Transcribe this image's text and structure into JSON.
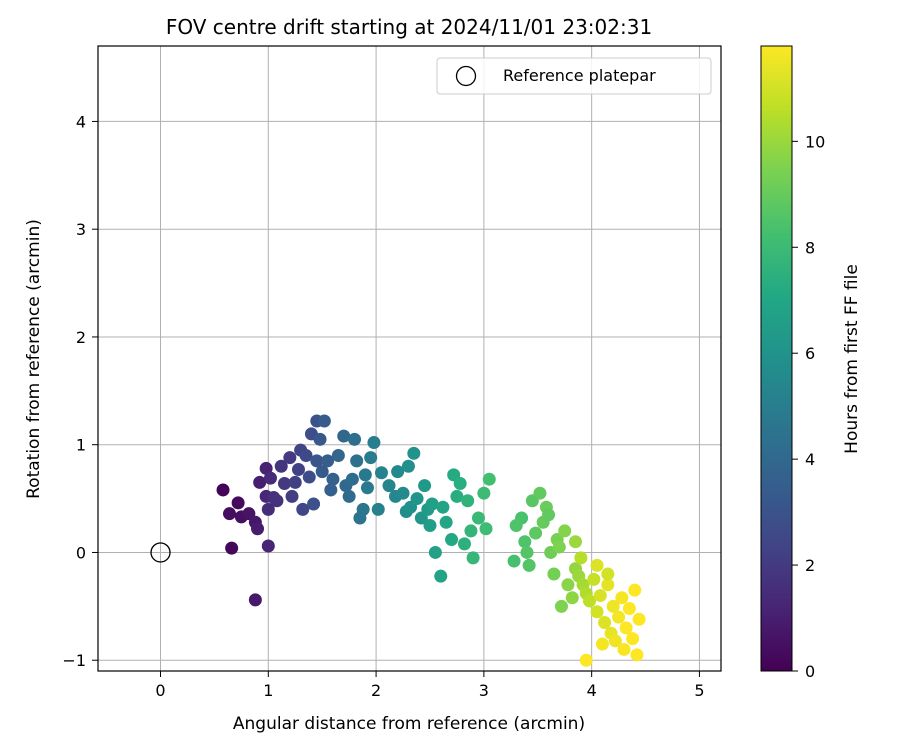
{
  "chart_data": {
    "type": "scatter",
    "title": "FOV centre drift starting at 2024/11/01 23:02:31",
    "xlabel": "Angular distance from reference (arcmin)",
    "ylabel": "Rotation from reference (arcmin)",
    "xlim": [
      -0.58,
      5.2
    ],
    "ylim": [
      -1.1,
      4.7
    ],
    "xticks": [
      0,
      1,
      2,
      3,
      4,
      5
    ],
    "yticks": [
      -1,
      0,
      1,
      2,
      3,
      4
    ],
    "grid": true,
    "legend": {
      "placement": "top-right",
      "entries": [
        "Reference platepar"
      ]
    },
    "reference": {
      "x": 0,
      "y": 0,
      "label": "Reference platepar"
    },
    "colorbar": {
      "label": "Hours from first FF file",
      "range": [
        0,
        11.8
      ],
      "ticks": [
        0,
        2,
        4,
        6,
        8,
        10
      ],
      "colormap": "viridis"
    },
    "points": [
      [
        0.58,
        0.58,
        0.1
      ],
      [
        0.66,
        0.04,
        0.2
      ],
      [
        0.72,
        0.46,
        0.3
      ],
      [
        0.64,
        0.36,
        0.4
      ],
      [
        0.75,
        0.33,
        0.5
      ],
      [
        0.82,
        0.36,
        0.6
      ],
      [
        0.88,
        0.28,
        0.7
      ],
      [
        0.88,
        -0.44,
        0.8
      ],
      [
        0.9,
        0.22,
        0.9
      ],
      [
        0.92,
        0.65,
        1.0
      ],
      [
        0.98,
        0.78,
        1.1
      ],
      [
        1.0,
        0.06,
        1.2
      ],
      [
        0.98,
        0.52,
        1.3
      ],
      [
        1.02,
        0.69,
        1.4
      ],
      [
        1.0,
        0.4,
        1.5
      ],
      [
        1.05,
        0.51,
        1.6
      ],
      [
        1.08,
        0.48,
        1.7
      ],
      [
        1.12,
        0.8,
        1.8
      ],
      [
        1.15,
        0.64,
        1.9
      ],
      [
        1.2,
        0.88,
        2.0
      ],
      [
        1.22,
        0.52,
        2.1
      ],
      [
        1.25,
        0.65,
        2.2
      ],
      [
        1.28,
        0.77,
        2.3
      ],
      [
        1.3,
        0.95,
        2.4
      ],
      [
        1.32,
        0.4,
        2.5
      ],
      [
        1.35,
        0.9,
        2.6
      ],
      [
        1.38,
        0.7,
        2.7
      ],
      [
        1.4,
        1.1,
        2.8
      ],
      [
        1.42,
        0.45,
        2.9
      ],
      [
        1.45,
        1.22,
        3.0
      ],
      [
        1.45,
        0.85,
        3.1
      ],
      [
        1.48,
        1.05,
        3.2
      ],
      [
        1.5,
        0.75,
        3.3
      ],
      [
        1.52,
        1.22,
        3.4
      ],
      [
        1.55,
        0.85,
        3.5
      ],
      [
        1.58,
        0.58,
        3.6
      ],
      [
        1.6,
        0.68,
        3.7
      ],
      [
        1.65,
        0.9,
        3.8
      ],
      [
        1.7,
        1.08,
        3.9
      ],
      [
        1.72,
        0.62,
        4.0
      ],
      [
        1.75,
        0.52,
        4.1
      ],
      [
        1.78,
        0.68,
        4.2
      ],
      [
        1.8,
        1.05,
        4.3
      ],
      [
        1.82,
        0.85,
        4.4
      ],
      [
        1.85,
        0.32,
        4.5
      ],
      [
        1.88,
        0.4,
        4.6
      ],
      [
        1.9,
        0.72,
        4.7
      ],
      [
        1.92,
        0.6,
        4.8
      ],
      [
        1.95,
        0.88,
        4.9
      ],
      [
        1.98,
        1.02,
        5.0
      ],
      [
        2.02,
        0.4,
        5.1
      ],
      [
        2.05,
        0.74,
        5.2
      ],
      [
        2.12,
        0.62,
        5.3
      ],
      [
        2.18,
        0.52,
        5.4
      ],
      [
        2.2,
        0.75,
        5.5
      ],
      [
        2.25,
        0.55,
        5.6
      ],
      [
        2.28,
        0.38,
        5.7
      ],
      [
        2.3,
        0.8,
        5.8
      ],
      [
        2.32,
        0.42,
        5.9
      ],
      [
        2.35,
        0.92,
        6.0
      ],
      [
        2.38,
        0.5,
        6.1
      ],
      [
        2.42,
        0.32,
        6.2
      ],
      [
        2.45,
        0.62,
        6.3
      ],
      [
        2.48,
        0.4,
        6.4
      ],
      [
        2.5,
        0.25,
        6.5
      ],
      [
        2.52,
        0.45,
        6.6
      ],
      [
        2.55,
        0.0,
        6.7
      ],
      [
        2.6,
        -0.22,
        6.8
      ],
      [
        2.62,
        0.42,
        6.9
      ],
      [
        2.65,
        0.28,
        7.0
      ],
      [
        2.7,
        0.12,
        7.1
      ],
      [
        2.72,
        0.72,
        7.2
      ],
      [
        2.75,
        0.52,
        7.3
      ],
      [
        2.78,
        0.64,
        7.4
      ],
      [
        2.82,
        0.08,
        7.5
      ],
      [
        2.85,
        0.48,
        7.6
      ],
      [
        2.88,
        0.2,
        7.7
      ],
      [
        2.9,
        -0.05,
        7.8
      ],
      [
        2.95,
        0.32,
        7.9
      ],
      [
        3.0,
        0.55,
        8.0
      ],
      [
        3.02,
        0.22,
        8.1
      ],
      [
        3.05,
        0.68,
        8.2
      ],
      [
        3.28,
        -0.08,
        8.3
      ],
      [
        3.35,
        0.32,
        8.4
      ],
      [
        3.38,
        0.1,
        8.5
      ],
      [
        3.42,
        -0.12,
        8.6
      ],
      [
        3.45,
        0.48,
        8.7
      ],
      [
        3.48,
        0.18,
        8.8
      ],
      [
        3.52,
        0.55,
        8.9
      ],
      [
        3.55,
        0.28,
        9.0
      ],
      [
        3.58,
        0.42,
        9.1
      ],
      [
        3.62,
        0.0,
        9.2
      ],
      [
        3.65,
        -0.2,
        9.3
      ],
      [
        3.68,
        0.12,
        9.4
      ],
      [
        3.72,
        -0.5,
        9.5
      ],
      [
        3.75,
        0.2,
        9.6
      ],
      [
        3.78,
        -0.3,
        9.7
      ],
      [
        3.82,
        -0.42,
        9.8
      ],
      [
        3.85,
        -0.15,
        9.9
      ],
      [
        3.88,
        -0.22,
        10.0
      ],
      [
        3.92,
        -0.3,
        10.2
      ],
      [
        3.95,
        -0.38,
        10.4
      ],
      [
        3.98,
        -0.45,
        10.6
      ],
      [
        4.02,
        -0.25,
        10.8
      ],
      [
        4.05,
        -0.55,
        11.0
      ],
      [
        4.08,
        -0.4,
        11.1
      ],
      [
        4.12,
        -0.65,
        11.2
      ],
      [
        4.15,
        -0.3,
        11.3
      ],
      [
        4.18,
        -0.75,
        11.4
      ],
      [
        4.2,
        -0.5,
        11.5
      ],
      [
        4.22,
        -0.82,
        11.55
      ],
      [
        4.25,
        -0.6,
        11.6
      ],
      [
        4.28,
        -0.42,
        11.65
      ],
      [
        4.3,
        -0.9,
        11.7
      ],
      [
        4.32,
        -0.7,
        11.75
      ],
      [
        4.35,
        -0.52,
        11.8
      ],
      [
        4.38,
        -0.8,
        11.8
      ],
      [
        4.4,
        -0.35,
        11.8
      ],
      [
        4.42,
        -0.95,
        11.8
      ],
      [
        4.44,
        -0.62,
        11.8
      ],
      [
        3.95,
        -1.0,
        11.8
      ],
      [
        4.1,
        -0.85,
        11.6
      ],
      [
        4.05,
        -0.12,
        11.2
      ],
      [
        4.15,
        -0.2,
        11.0
      ],
      [
        3.9,
        -0.05,
        10.5
      ],
      [
        3.85,
        0.1,
        10.0
      ],
      [
        3.7,
        0.05,
        9.5
      ],
      [
        3.6,
        0.35,
        8.9
      ],
      [
        3.3,
        0.25,
        8.5
      ],
      [
        3.4,
        0.0,
        8.6
      ]
    ]
  }
}
